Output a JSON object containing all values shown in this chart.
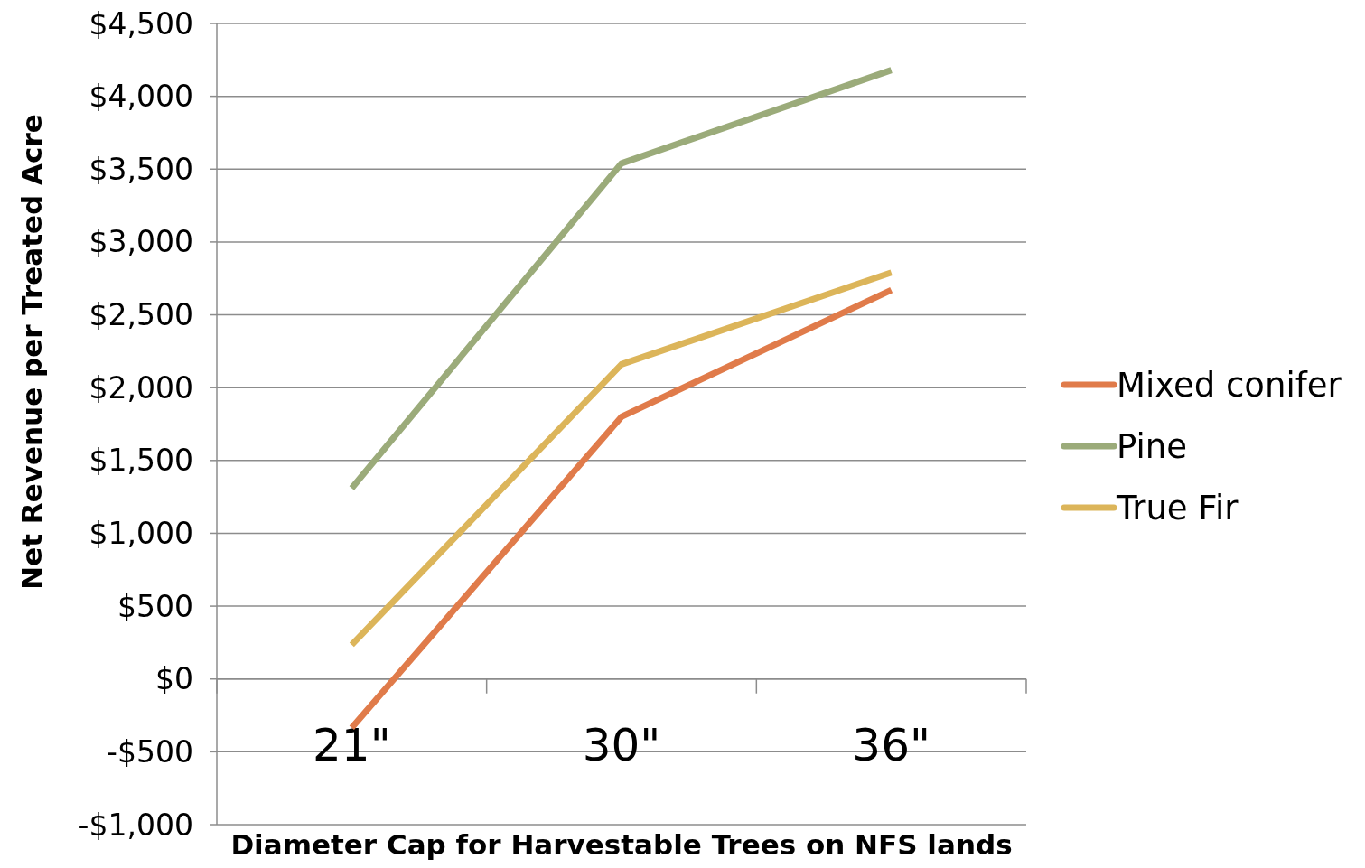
{
  "chart_data": {
    "type": "line",
    "xlabel": "Diameter Cap for Harvestable Trees on NFS lands",
    "ylabel": "Net Revenue per Treated Acre",
    "categories": [
      "21\"",
      "30\"",
      "36\""
    ],
    "series": [
      {
        "name": "Mixed conifer",
        "color": "#e07b4a",
        "values": [
          -335,
          1800,
          2670
        ]
      },
      {
        "name": "Pine",
        "color": "#9bab7a",
        "values": [
          1310,
          3540,
          4180
        ]
      },
      {
        "name": "True Fir",
        "color": "#dcb55a",
        "values": [
          235,
          2160,
          2790
        ]
      }
    ],
    "ylim": [
      -1000,
      4500
    ],
    "yticks": [
      {
        "value": -1000,
        "label": "-$1,000"
      },
      {
        "value": -500,
        "label": "-$500"
      },
      {
        "value": 0,
        "label": "$0"
      },
      {
        "value": 500,
        "label": "$500"
      },
      {
        "value": 1000,
        "label": "$1,000"
      },
      {
        "value": 1500,
        "label": "$1,500"
      },
      {
        "value": 2000,
        "label": "$2,000"
      },
      {
        "value": 2500,
        "label": "$2,500"
      },
      {
        "value": 3000,
        "label": "$3,000"
      },
      {
        "value": 3500,
        "label": "$3,500"
      },
      {
        "value": 4000,
        "label": "$4,000"
      },
      {
        "value": 4500,
        "label": "$4,500"
      }
    ],
    "grid": "y",
    "legend": "right",
    "marker": "none",
    "line_style": "solid"
  }
}
